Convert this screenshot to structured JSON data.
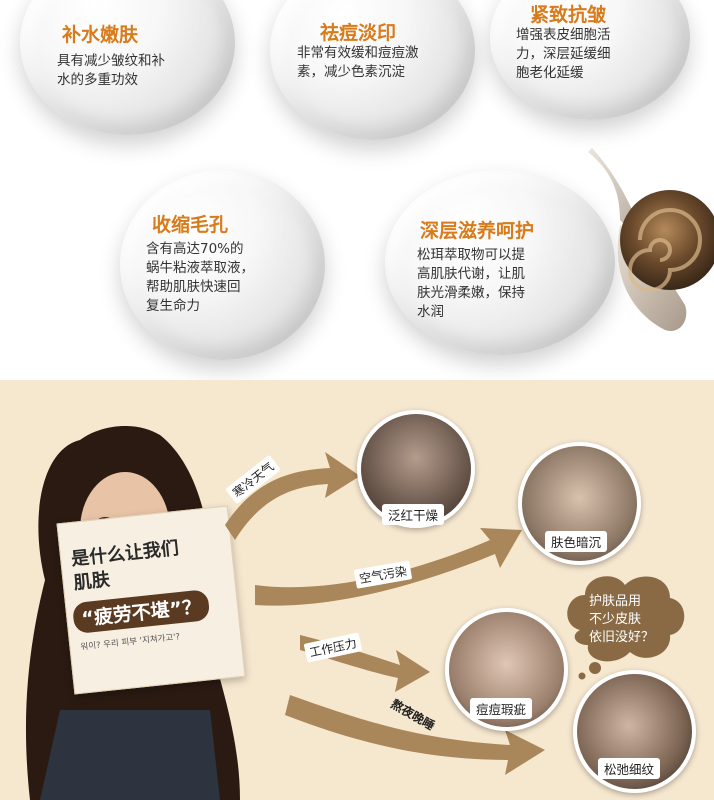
{
  "features": [
    {
      "title": "补水嫩肤",
      "lines": [
        "具有减少皱纹和补",
        "水的多重功效"
      ]
    },
    {
      "title": "祛痘淡印",
      "lines": [
        "非常有效缓和痘痘激",
        "素，减少色素沉淀"
      ]
    },
    {
      "title": "紧致抗皱",
      "lines": [
        "增强表皮细胞活",
        "力，深层延缓细",
        "胞老化延缓"
      ]
    },
    {
      "title": "收缩毛孔",
      "lines": [
        "含有高达70%的",
        "蜗牛粘液萃取液，",
        "帮助肌肤快速回",
        "复生命力"
      ]
    },
    {
      "title": "深层滋养呵护",
      "lines": [
        "松珥萃取物可以提",
        "高肌肤代谢，让肌",
        "肤光滑柔嫩，保持",
        "水润"
      ]
    }
  ],
  "card": {
    "line1": "是什么让我们",
    "line2": "肌肤",
    "highlight": "“疲劳不堪”？",
    "korean": "워이? 우리 피부 '지쳐가고'?"
  },
  "causes": [
    "寒冷天气",
    "空气污染",
    "工作压力",
    "熬夜晚睡"
  ],
  "results": [
    "泛红干燥",
    "肤色暗沉",
    "痘痘瑕疵",
    "松弛细纹"
  ],
  "bubble": [
    "护肤品用",
    "不少皮肤",
    "依旧没好？"
  ]
}
